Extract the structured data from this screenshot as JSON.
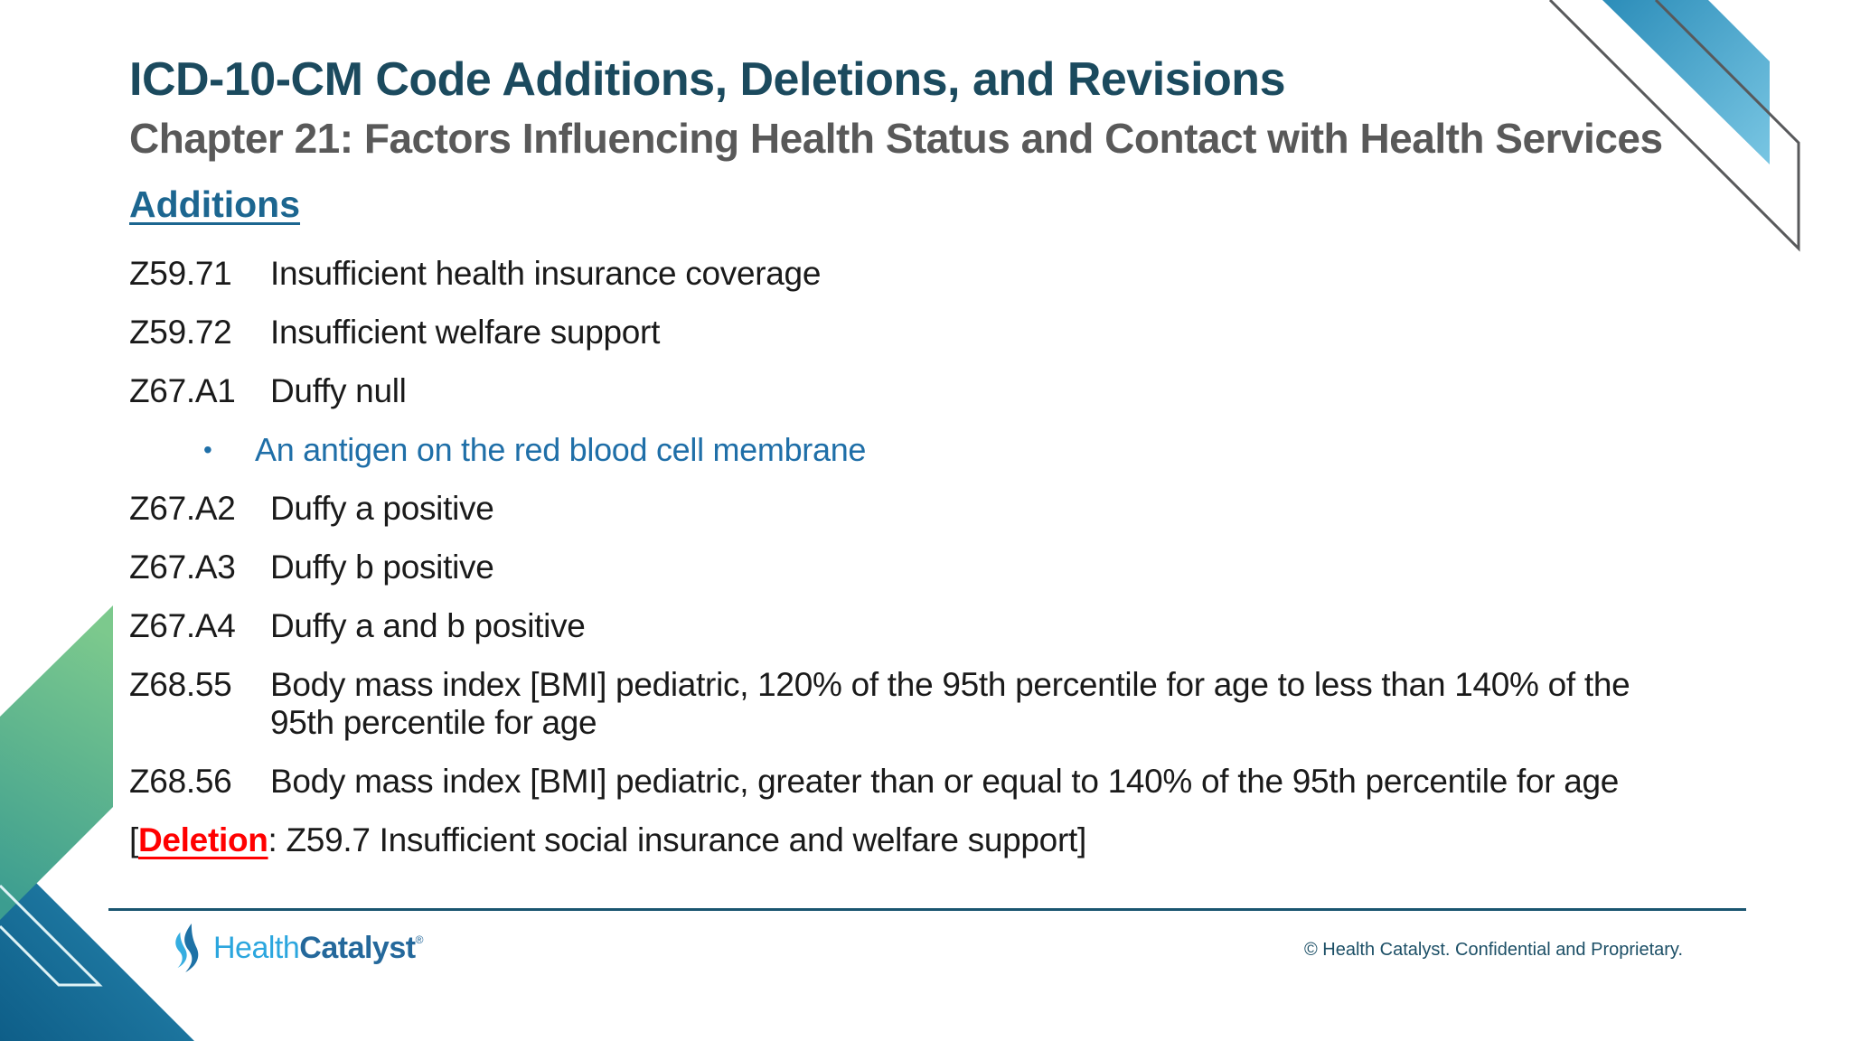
{
  "slide": {
    "title": "ICD-10-CM Code Additions, Deletions, and Revisions",
    "subtitle": "Chapter 21: Factors Influencing Health Status and Contact with Health Services",
    "section_heading": "Additions",
    "items": [
      {
        "type": "code",
        "code": "Z59.71",
        "description": "Insufficient health insurance coverage"
      },
      {
        "type": "code",
        "code": "Z59.72",
        "description": "Insufficient welfare support"
      },
      {
        "type": "code",
        "code": "Z67.A1",
        "description": "Duffy null"
      },
      {
        "type": "bullet",
        "bullet_icon": "bullet-dot",
        "text": "An antigen on the red blood cell membrane"
      },
      {
        "type": "code",
        "code": "Z67.A2",
        "description": "Duffy a positive"
      },
      {
        "type": "code",
        "code": "Z67.A3",
        "description": "Duffy b positive"
      },
      {
        "type": "code",
        "code": "Z67.A4",
        "description": "Duffy a and b positive"
      },
      {
        "type": "code",
        "code": "Z68.55",
        "description_lines": [
          "Body mass index [BMI] pediatric, 120% of the 95th percentile for age to less than 140% of the",
          "95th percentile for age"
        ]
      },
      {
        "type": "code",
        "code": "Z68.56",
        "description": "Body mass index [BMI] pediatric, greater than or equal to 140% of the 95th percentile for age"
      },
      {
        "type": "deletion",
        "open_bracket": "[",
        "label": "Deletion",
        "colon": ":",
        "text": " Z59.7 Insufficient social insurance and welfare support",
        "close_bracket": "]"
      }
    ],
    "footer": {
      "logo_health": "Health",
      "logo_catalyst": "Catalyst",
      "logo_mark": "®",
      "copyright": "© Health Catalyst. Confidential and Proprietary."
    },
    "colors": {
      "title_teal": "#1B4A5E",
      "subtitle_gray": "#595959",
      "heading_blue": "#1C6690",
      "bullet_blue": "#1F6FA8",
      "body_text": "#1A1A1A",
      "deletion_red": "#FF0000",
      "footer_rule": "#1A5570",
      "logo_light_blue": "#2BA6DE",
      "logo_dark_blue": "#24689B",
      "copyright_teal": "#1C4F66",
      "ribbon_blue_light": "#79C6E3",
      "ribbon_blue_dark": "#2C8DB9",
      "ribbon_green_light": "#7CC98D",
      "ribbon_green_teal": "#3C9D90",
      "triangle_blue_light": "#2A8BB4",
      "triangle_blue_dark": "#0E5E88",
      "outline_gray": "#58595B"
    }
  }
}
